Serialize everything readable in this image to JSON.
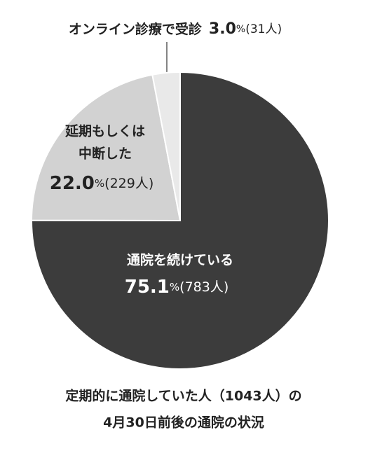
{
  "chart_data": {
    "type": "pie",
    "title": [
      "定期的に通院していた人（1043人）の",
      "4月30日前後の通院の状況"
    ],
    "categories": [
      [
        "通院を続けている"
      ],
      [
        "延期もしくは",
        "中断した"
      ],
      [
        "オンライン診療で受診"
      ]
    ],
    "values": [
      75.1,
      22.0,
      3.0
    ],
    "value_labels": [
      "75.1",
      "22.0",
      "3.0"
    ],
    "unit": "%",
    "count_labels": [
      "(783人)",
      "(229人)",
      "(31人)"
    ],
    "colors": [
      "#3c3c3c",
      "#d2d2d2",
      "#e9e9e9"
    ]
  }
}
